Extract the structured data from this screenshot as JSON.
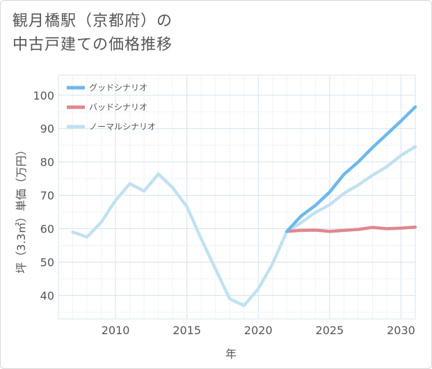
{
  "title_lines": [
    "観月橋駅（京都府）の",
    "中古戸建ての価格推移"
  ],
  "chart_data": {
    "type": "line",
    "title": "観月橋駅（京都府）の中古戸建ての価格推移",
    "xlabel": "年",
    "ylabel": "坪（3.3㎡）単価（万円）",
    "xlim": [
      2006,
      2031
    ],
    "ylim": [
      33,
      106
    ],
    "xticks": [
      2010,
      2015,
      2020,
      2025,
      2030
    ],
    "yticks": [
      40,
      50,
      60,
      70,
      80,
      90,
      100
    ],
    "grid": true,
    "legend_position": "top-left",
    "series": [
      {
        "name": "グッドシナリオ",
        "color": "#6cb8ee",
        "x": [
          2022,
          2023,
          2024,
          2025,
          2026,
          2027,
          2028,
          2029,
          2030,
          2031
        ],
        "y": [
          59.2,
          63.8,
          67.0,
          71.0,
          76.3,
          80.0,
          84.3,
          88.3,
          92.3,
          96.5
        ]
      },
      {
        "name": "バッドシナリオ",
        "color": "#e0878f",
        "x": [
          2022,
          2023,
          2024,
          2025,
          2026,
          2027,
          2028,
          2029,
          2030,
          2031
        ],
        "y": [
          59.2,
          59.5,
          59.6,
          59.2,
          59.5,
          59.8,
          60.4,
          60.0,
          60.2,
          60.5
        ]
      },
      {
        "name": "ノーマルシナリオ",
        "color": "#c1e1f0",
        "x": [
          2007,
          2008,
          2009,
          2010,
          2011,
          2012,
          2013,
          2014,
          2015,
          2016,
          2017,
          2018,
          2019,
          2020,
          2021,
          2022,
          2023,
          2024,
          2025,
          2026,
          2027,
          2028,
          2029,
          2030,
          2031
        ],
        "y": [
          59.0,
          57.5,
          62.0,
          68.5,
          73.5,
          71.3,
          76.4,
          72.3,
          66.6,
          57.0,
          48.0,
          39.0,
          37.0,
          42.0,
          49.5,
          59.2,
          61.8,
          64.9,
          67.2,
          70.6,
          73.1,
          76.0,
          78.6,
          82.0,
          84.6
        ]
      }
    ]
  }
}
